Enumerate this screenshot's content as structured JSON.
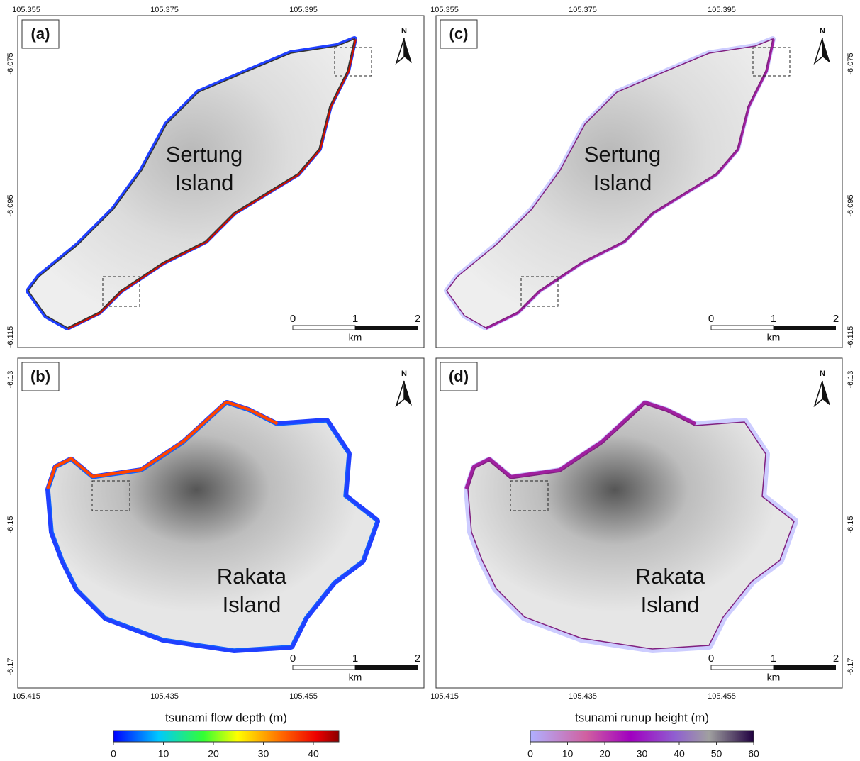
{
  "panels": [
    {
      "label": "(a)",
      "island": [
        "Sertung",
        "Island"
      ],
      "north": "N",
      "scale": {
        "ticks": [
          0,
          1,
          2
        ],
        "unit": "km"
      }
    },
    {
      "label": "(b)",
      "island": [
        "Rakata",
        "Island"
      ],
      "north": "N",
      "scale": {
        "ticks": [
          0,
          1,
          2
        ],
        "unit": "km"
      }
    },
    {
      "label": "(c)",
      "island": [
        "Sertung",
        "Island"
      ],
      "north": "N",
      "scale": {
        "ticks": [
          0,
          1,
          2
        ],
        "unit": "km"
      }
    },
    {
      "label": "(d)",
      "island": [
        "Rakata",
        "Island"
      ],
      "north": "N",
      "scale": {
        "ticks": [
          0,
          1,
          2
        ],
        "unit": "km"
      }
    }
  ],
  "axes": {
    "sertung_lon": [
      "105.355",
      "105.375",
      "105.395"
    ],
    "sertung_lat": [
      "-6.075",
      "-6.095",
      "-6.115"
    ],
    "rakata_lon": [
      "105.415",
      "105.435",
      "105.455"
    ],
    "rakata_lat": [
      "-6.13",
      "-6.15",
      "-6.17"
    ]
  },
  "colorbars": [
    {
      "title": "tsunami flow depth (m)",
      "ticks": [
        0,
        10,
        20,
        30,
        40
      ]
    },
    {
      "title": "tsunami runup height (m)",
      "ticks": [
        0,
        10,
        20,
        30,
        40,
        50,
        60
      ]
    }
  ]
}
